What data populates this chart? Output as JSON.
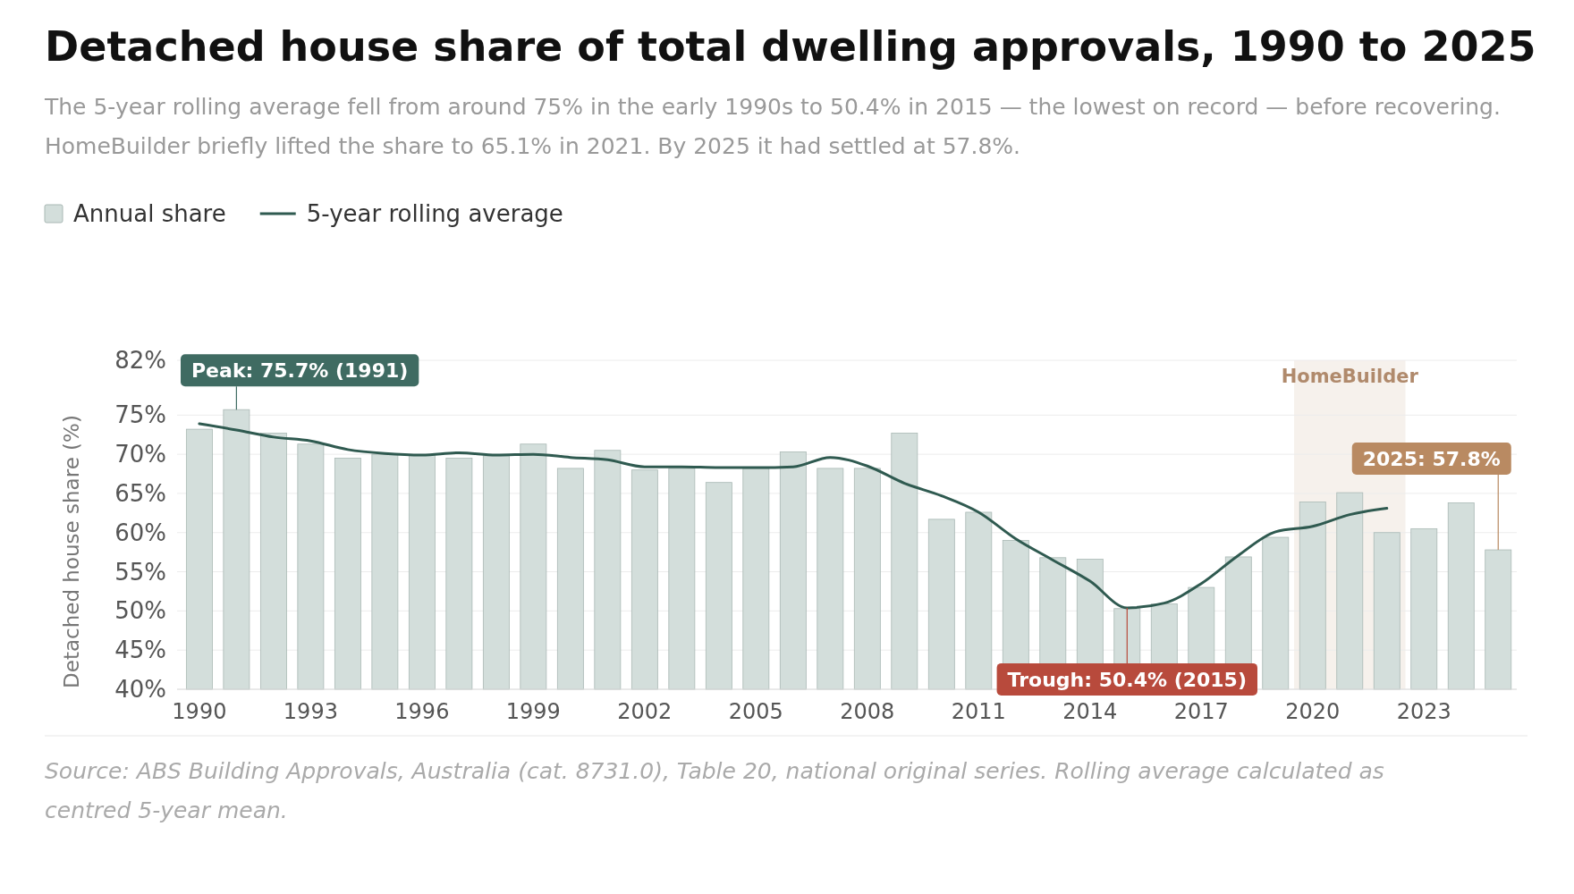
{
  "chart_data": {
    "type": "bar",
    "title": "Detached house share of total dwelling approvals, 1990 to 2025",
    "subtitle": "The 5-year rolling average fell from around 75% in the early 1990s to 50.4% in 2015 — the lowest on record — before recovering. HomeBuilder briefly lifted the share to 65.1% in 2021. By 2025 it had settled at 57.8%.",
    "ylabel": "Detached house share (%)",
    "x": [
      1990,
      1991,
      1992,
      1993,
      1994,
      1995,
      1996,
      1997,
      1998,
      1999,
      2000,
      2001,
      2002,
      2003,
      2004,
      2005,
      2006,
      2007,
      2008,
      2009,
      2010,
      2011,
      2012,
      2013,
      2014,
      2015,
      2016,
      2017,
      2018,
      2019,
      2020,
      2021,
      2022,
      2023,
      2024,
      2025
    ],
    "series": [
      {
        "name": "Annual share",
        "color": "#d3dedb",
        "values": [
          73.2,
          75.7,
          72.7,
          71.3,
          69.5,
          70.0,
          69.9,
          69.5,
          69.8,
          71.3,
          68.2,
          70.5,
          68.0,
          68.2,
          66.4,
          68.2,
          70.3,
          68.2,
          68.2,
          72.7,
          61.7,
          62.6,
          59.0,
          56.8,
          56.6,
          50.3,
          50.9,
          53.0,
          56.9,
          59.4,
          63.9,
          65.1,
          60.0,
          60.5,
          63.8,
          57.8
        ]
      },
      {
        "name": "5-year rolling average",
        "type": "line",
        "color": "#2f5a50",
        "x": [
          1990,
          1991,
          1992,
          1993,
          1994,
          1995,
          1996,
          1997,
          1998,
          1999,
          2000,
          2001,
          2002,
          2003,
          2004,
          2005,
          2006,
          2007,
          2008,
          2009,
          2010,
          2011,
          2012,
          2013,
          2014,
          2015,
          2016,
          2017,
          2018,
          2019,
          2020,
          2021,
          2022
        ],
        "values": [
          73.9,
          73.1,
          72.2,
          71.7,
          70.6,
          70.1,
          69.9,
          70.2,
          69.9,
          70.0,
          69.6,
          69.3,
          68.4,
          68.4,
          68.3,
          68.3,
          68.4,
          69.6,
          68.5,
          66.3,
          64.7,
          62.6,
          59.2,
          56.5,
          53.8,
          50.4,
          51.0,
          53.5,
          57.1,
          60.1,
          60.8,
          62.3,
          63.1
        ]
      }
    ],
    "xlim": [
      1989.4,
      2025.5
    ],
    "xticks": [
      1990,
      1993,
      1996,
      1999,
      2002,
      2005,
      2008,
      2011,
      2014,
      2017,
      2020,
      2023
    ],
    "ylim": [
      40,
      82
    ],
    "yticks": [
      {
        "value": 40,
        "label": "40%"
      },
      {
        "value": 45,
        "label": "45%"
      },
      {
        "value": 50,
        "label": "50%"
      },
      {
        "value": 55,
        "label": "55%"
      },
      {
        "value": 60,
        "label": "60%"
      },
      {
        "value": 65,
        "label": "65%"
      },
      {
        "value": 70,
        "label": "70%"
      },
      {
        "value": 75,
        "label": "75%"
      },
      {
        "value": 82,
        "label": "82%"
      }
    ],
    "grid": "y",
    "legend": "top left",
    "line_style": "solid",
    "marker": "none",
    "bands": [
      {
        "axis": "x",
        "from": 2019.5,
        "to": 2022.5,
        "label": "HomeBuilder",
        "color": "#f6f1ec"
      }
    ],
    "annotations": [
      {
        "text": "Peak: 75.7% (1991)",
        "x": 1991,
        "y": 75.7
      },
      {
        "text": "Trough: 50.4% (2015)",
        "x": 2015,
        "y": 50.4
      },
      {
        "text": "2025: 57.8%",
        "x": 2025,
        "y": 57.8
      },
      "Source: ABS Building Approvals, Australia (cat. 8731.0), Table 20, national original series. Rolling average calculated as centred 5-year mean."
    ]
  }
}
